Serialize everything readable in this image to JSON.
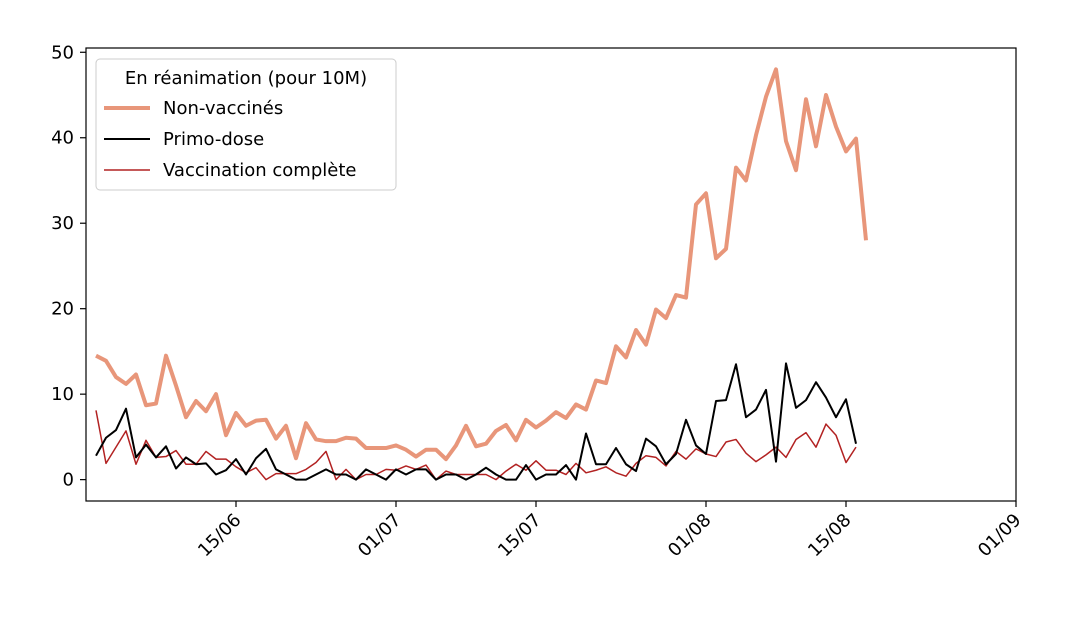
{
  "chart_data": {
    "type": "line",
    "xlabel": "",
    "ylabel": "",
    "xlim": [
      "2021-05-31",
      "2021-09-01"
    ],
    "ylim": [
      -2.5,
      50.5
    ],
    "grid": false,
    "x_ticks": [
      "2021-06-15",
      "2021-07-01",
      "2021-07-15",
      "2021-08-01",
      "2021-08-15",
      "2021-09-01"
    ],
    "x_tick_labels": [
      "15/06",
      "01/07",
      "15/07",
      "01/08",
      "15/08",
      "01/09"
    ],
    "y_ticks": [
      0,
      10,
      20,
      30,
      40,
      50
    ],
    "y_tick_labels": [
      "0",
      "10",
      "20",
      "30",
      "40",
      "50"
    ],
    "legend": {
      "title": "En réanimation (pour 10M)",
      "placement": "upper-left"
    },
    "x_start": "2021-06-01",
    "x_step_days": 1,
    "series": [
      {
        "name": "Non-vaccinés",
        "color": "#e8967a",
        "width": 4,
        "values": [
          14.5,
          13.9,
          12.0,
          11.2,
          12.3,
          8.7,
          8.9,
          14.5,
          11.0,
          7.3,
          9.2,
          8.0,
          10.0,
          5.2,
          7.8,
          6.3,
          6.9,
          7.0,
          4.8,
          6.3,
          2.5,
          6.6,
          4.7,
          4.5,
          4.5,
          4.9,
          4.8,
          3.7,
          3.7,
          3.7,
          4.0,
          3.5,
          2.7,
          3.5,
          3.5,
          2.4,
          4.0,
          6.3,
          3.9,
          4.2,
          5.7,
          6.4,
          4.6,
          7.0,
          6.1,
          6.9,
          7.9,
          7.2,
          8.8,
          8.2,
          11.6,
          11.3,
          15.6,
          14.3,
          17.5,
          15.8,
          19.9,
          18.9,
          21.6,
          21.3,
          32.2,
          33.5,
          25.9,
          27.0,
          36.5,
          35.0,
          40.3,
          44.8,
          48.0,
          39.6,
          36.2,
          44.5,
          39.0,
          45.0,
          41.3,
          38.4,
          39.9,
          28.0
        ]
      },
      {
        "name": "Primo-dose",
        "color": "#000000",
        "width": 2,
        "values": [
          2.8,
          4.9,
          5.8,
          8.3,
          2.6,
          4.1,
          2.6,
          3.9,
          1.3,
          2.6,
          1.8,
          1.9,
          0.6,
          1.1,
          2.4,
          0.6,
          2.5,
          3.6,
          1.2,
          0.6,
          0.0,
          0.0,
          0.6,
          1.2,
          0.6,
          0.6,
          0.0,
          1.2,
          0.6,
          0.0,
          1.2,
          0.6,
          1.2,
          1.2,
          0.0,
          0.6,
          0.6,
          0.0,
          0.6,
          1.4,
          0.6,
          0.0,
          0.0,
          1.7,
          0.0,
          0.6,
          0.6,
          1.7,
          0.0,
          5.4,
          1.8,
          1.8,
          3.7,
          1.8,
          1.0,
          4.8,
          3.9,
          1.8,
          3.0,
          7.0,
          4.0,
          3.0,
          9.2,
          9.3,
          13.5,
          7.3,
          8.2,
          10.5,
          2.1,
          13.6,
          8.4,
          9.3,
          11.4,
          9.6,
          7.3,
          9.4,
          4.2
        ]
      },
      {
        "name": "Vaccination complète",
        "color": "#b22222",
        "width": 1.5,
        "values": [
          8.1,
          1.9,
          3.8,
          5.7,
          1.8,
          4.6,
          2.6,
          2.7,
          3.4,
          1.8,
          1.8,
          3.3,
          2.4,
          2.4,
          1.5,
          0.8,
          1.4,
          0.0,
          0.7,
          0.7,
          0.7,
          1.2,
          2.0,
          3.3,
          0.0,
          1.2,
          0.0,
          0.6,
          0.6,
          1.2,
          1.1,
          1.6,
          1.2,
          1.7,
          0.0,
          1.0,
          0.6,
          0.6,
          0.6,
          0.6,
          0.0,
          1.0,
          1.8,
          1.1,
          2.2,
          1.1,
          1.1,
          0.6,
          1.9,
          0.8,
          1.1,
          1.5,
          0.8,
          0.4,
          1.9,
          2.8,
          2.6,
          1.6,
          3.3,
          2.4,
          3.6,
          3.0,
          2.7,
          4.4,
          4.7,
          3.1,
          2.1,
          2.9,
          3.8,
          2.6,
          4.7,
          5.5,
          3.8,
          6.5,
          5.2,
          2.0,
          3.8
        ]
      }
    ]
  }
}
